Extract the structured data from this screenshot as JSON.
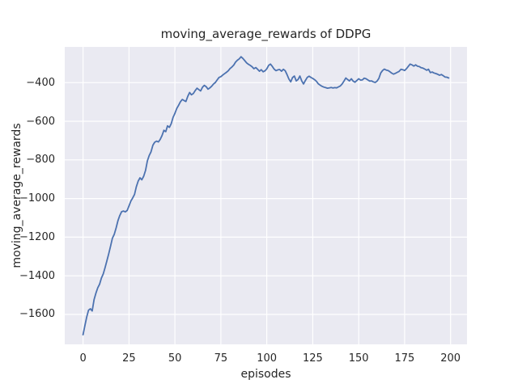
{
  "chart_data": {
    "type": "line",
    "title": "moving_average_rewards of DDPG",
    "xlabel": "episodes",
    "ylabel": "moving_average_rewards",
    "grid": true,
    "legend": false,
    "axes_bg_color": "#eaeaf2",
    "grid_color": "#ffffff",
    "text_color": "#262626",
    "xlim": [
      -9.95,
      208.95
    ],
    "ylim": [
      -1755,
      -215
    ],
    "x_ticks": [
      {
        "v": 0,
        "label": "0"
      },
      {
        "v": 25,
        "label": "25"
      },
      {
        "v": 50,
        "label": "50"
      },
      {
        "v": 75,
        "label": "75"
      },
      {
        "v": 100,
        "label": "100"
      },
      {
        "v": 125,
        "label": "125"
      },
      {
        "v": 150,
        "label": "150"
      },
      {
        "v": 175,
        "label": "175"
      },
      {
        "v": 200,
        "label": "200"
      }
    ],
    "y_ticks": [
      {
        "v": -400,
        "label": "−400"
      },
      {
        "v": -600,
        "label": "−600"
      },
      {
        "v": -800,
        "label": "−800"
      },
      {
        "v": -1000,
        "label": "−1000"
      },
      {
        "v": -1200,
        "label": "−1200"
      },
      {
        "v": -1400,
        "label": "−1400"
      },
      {
        "v": -1600,
        "label": "−1600"
      }
    ],
    "series": [
      {
        "color": "#4c72b0",
        "x_start": 0,
        "x_step": 1,
        "y": [
          -1705,
          -1658,
          -1614,
          -1578,
          -1571,
          -1582,
          -1524,
          -1490,
          -1462,
          -1444,
          -1412,
          -1390,
          -1358,
          -1322,
          -1285,
          -1247,
          -1205,
          -1185,
          -1152,
          -1115,
          -1088,
          -1068,
          -1065,
          -1069,
          -1062,
          -1038,
          -1014,
          -997,
          -979,
          -940,
          -910,
          -893,
          -903,
          -885,
          -855,
          -805,
          -778,
          -758,
          -724,
          -709,
          -703,
          -707,
          -694,
          -674,
          -647,
          -654,
          -624,
          -632,
          -612,
          -580,
          -559,
          -534,
          -517,
          -499,
          -487,
          -493,
          -498,
          -471,
          -451,
          -463,
          -457,
          -442,
          -429,
          -436,
          -443,
          -424,
          -414,
          -421,
          -434,
          -427,
          -419,
          -407,
          -399,
          -386,
          -373,
          -369,
          -361,
          -354,
          -347,
          -339,
          -327,
          -319,
          -309,
          -294,
          -284,
          -277,
          -266,
          -275,
          -286,
          -298,
          -305,
          -311,
          -318,
          -328,
          -322,
          -331,
          -341,
          -333,
          -344,
          -339,
          -329,
          -311,
          -304,
          -316,
          -330,
          -338,
          -334,
          -332,
          -341,
          -331,
          -338,
          -358,
          -381,
          -396,
          -374,
          -366,
          -391,
          -384,
          -366,
          -391,
          -407,
          -389,
          -373,
          -367,
          -373,
          -378,
          -385,
          -393,
          -406,
          -413,
          -419,
          -423,
          -426,
          -429,
          -427,
          -425,
          -428,
          -426,
          -427,
          -422,
          -417,
          -407,
          -392,
          -376,
          -384,
          -391,
          -380,
          -392,
          -398,
          -389,
          -380,
          -387,
          -386,
          -377,
          -380,
          -386,
          -392,
          -391,
          -396,
          -399,
          -392,
          -378,
          -350,
          -337,
          -330,
          -335,
          -337,
          -344,
          -351,
          -356,
          -352,
          -347,
          -342,
          -331,
          -333,
          -337,
          -328,
          -316,
          -304,
          -308,
          -314,
          -308,
          -315,
          -317,
          -323,
          -325,
          -330,
          -336,
          -331,
          -348,
          -345,
          -350,
          -353,
          -357,
          -362,
          -358,
          -364,
          -371,
          -372,
          -376
        ]
      }
    ]
  }
}
